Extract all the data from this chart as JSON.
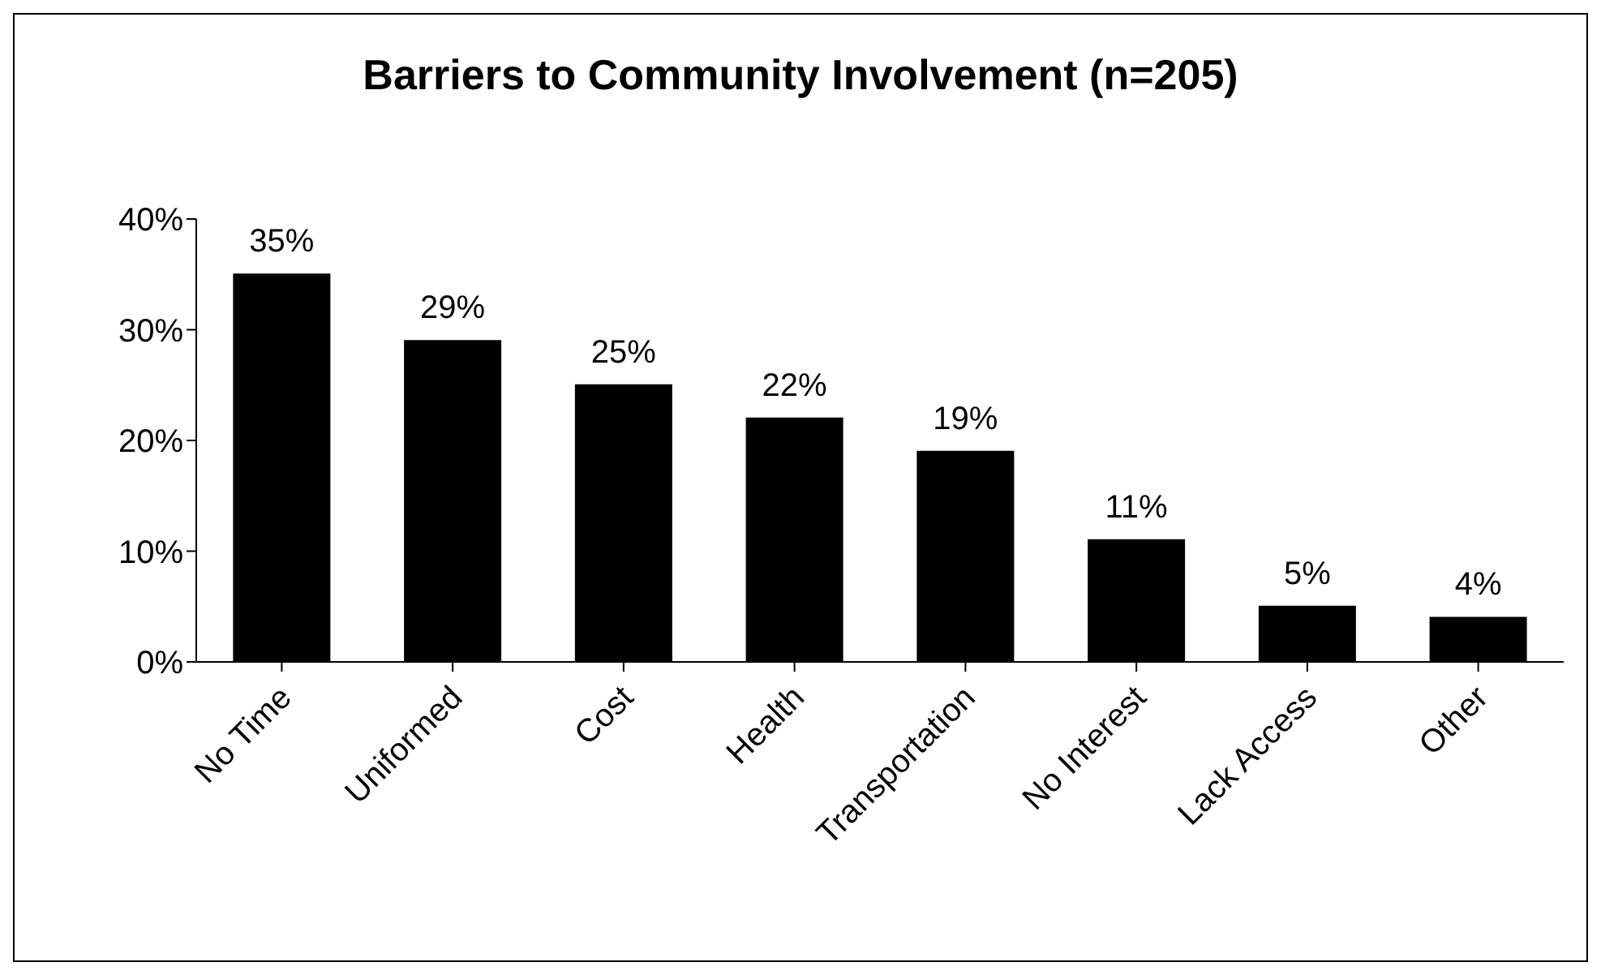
{
  "chart_data": {
    "type": "bar",
    "title": "Barriers to Community Involvement (n=205)",
    "categories": [
      "No Time",
      "Uniformed",
      "Cost",
      "Health",
      "Transportation",
      "No Interest",
      "Lack Access",
      "Other"
    ],
    "values": [
      35,
      29,
      25,
      22,
      19,
      11,
      5,
      4
    ],
    "value_labels": [
      "35%",
      "29%",
      "25%",
      "22%",
      "19%",
      "11%",
      "5%",
      "4%"
    ],
    "color": "#000000",
    "ylim": [
      0,
      40
    ],
    "yticks": [
      {
        "value": 0,
        "label": "0%"
      },
      {
        "value": 10,
        "label": "10%"
      },
      {
        "value": 20,
        "label": "20%"
      },
      {
        "value": 30,
        "label": "30%"
      },
      {
        "value": 40,
        "label": "40%"
      }
    ],
    "grid": false,
    "legend": false
  }
}
